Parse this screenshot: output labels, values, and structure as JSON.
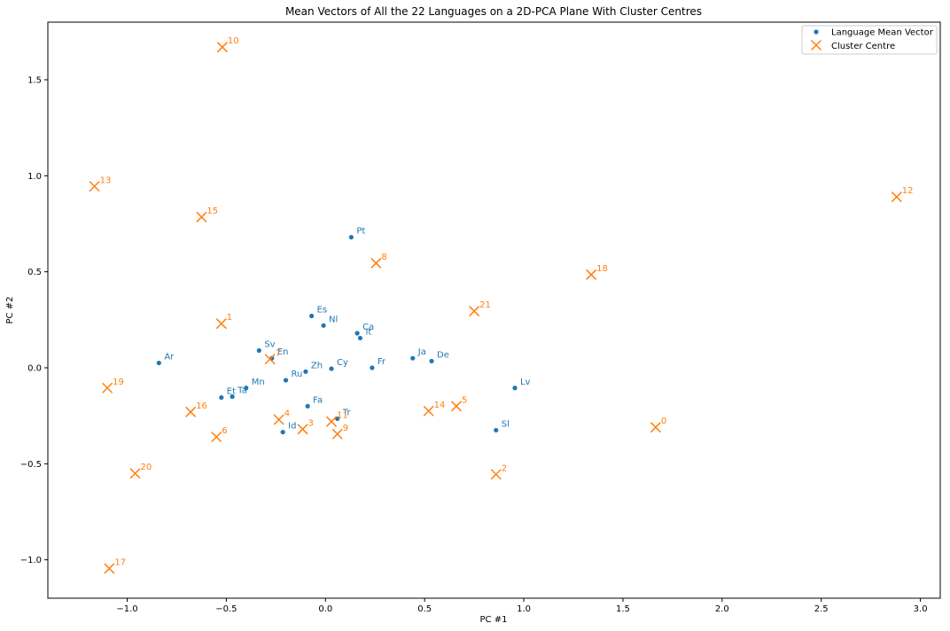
{
  "chart_data": {
    "type": "scatter",
    "title": "Mean Vectors of All the 22 Languages on a 2D-PCA Plane With Cluster Centres",
    "xlabel": "PC #1",
    "ylabel": "PC #2",
    "xlim": [
      -1.4,
      3.1
    ],
    "ylim": [
      -1.2,
      1.8
    ],
    "xticks": [
      -1.0,
      -0.5,
      0.0,
      0.5,
      1.0,
      1.5,
      2.0,
      2.5,
      3.0
    ],
    "xtick_labels": [
      "−1.0",
      "−0.5",
      "0.0",
      "0.5",
      "1.0",
      "1.5",
      "2.0",
      "2.5",
      "3.0"
    ],
    "yticks": [
      -1.0,
      -0.5,
      0.0,
      0.5,
      1.0,
      1.5
    ],
    "ytick_labels": [
      "−1.0",
      "−0.5",
      "0.0",
      "0.5",
      "1.0",
      "1.5"
    ],
    "grid": false,
    "legend": "top-right",
    "series": [
      {
        "name": "Language Mean Vector",
        "marker": "dot",
        "color": "#1f77b4",
        "points": [
          {
            "label": "Pt",
            "x": 0.13,
            "y": 0.68
          },
          {
            "label": "Es",
            "x": -0.07,
            "y": 0.27
          },
          {
            "label": "Nl",
            "x": -0.01,
            "y": 0.22
          },
          {
            "label": "Ca",
            "x": 0.16,
            "y": 0.18
          },
          {
            "label": "It",
            "x": 0.175,
            "y": 0.155
          },
          {
            "label": "Sv",
            "x": -0.335,
            "y": 0.09
          },
          {
            "label": "En",
            "x": -0.27,
            "y": 0.05
          },
          {
            "label": "Ar",
            "x": -0.84,
            "y": 0.025
          },
          {
            "label": "Ja",
            "x": 0.44,
            "y": 0.05
          },
          {
            "label": "De",
            "x": 0.535,
            "y": 0.035
          },
          {
            "label": "Fr",
            "x": 0.235,
            "y": 0.0
          },
          {
            "label": "Zh",
            "x": -0.1,
            "y": -0.02
          },
          {
            "label": "Cy",
            "x": 0.03,
            "y": -0.005
          },
          {
            "label": "Ru",
            "x": -0.2,
            "y": -0.065
          },
          {
            "label": "Mn",
            "x": -0.4,
            "y": -0.105
          },
          {
            "label": "Et",
            "x": -0.525,
            "y": -0.155
          },
          {
            "label": "Ta",
            "x": -0.47,
            "y": -0.15
          },
          {
            "label": "Lv",
            "x": 0.955,
            "y": -0.105
          },
          {
            "label": "Fa",
            "x": -0.09,
            "y": -0.2
          },
          {
            "label": "Tr",
            "x": 0.06,
            "y": -0.265
          },
          {
            "label": "Id",
            "x": -0.215,
            "y": -0.335
          },
          {
            "label": "Sl",
            "x": 0.86,
            "y": -0.325
          }
        ]
      },
      {
        "name": "Cluster Centre",
        "marker": "x",
        "color": "#ff7f0e",
        "points": [
          {
            "label": "0",
            "x": 1.665,
            "y": -0.31
          },
          {
            "label": "1",
            "x": -0.525,
            "y": 0.23
          },
          {
            "label": "2",
            "x": 0.86,
            "y": -0.555
          },
          {
            "label": "3",
            "x": -0.115,
            "y": -0.32
          },
          {
            "label": "4",
            "x": -0.235,
            "y": -0.27
          },
          {
            "label": "5",
            "x": 0.66,
            "y": -0.2
          },
          {
            "label": "6",
            "x": -0.55,
            "y": -0.36
          },
          {
            "label": "7",
            "x": -0.28,
            "y": 0.045
          },
          {
            "label": "8",
            "x": 0.255,
            "y": 0.545
          },
          {
            "label": "9",
            "x": 0.06,
            "y": -0.345
          },
          {
            "label": "10",
            "x": -0.52,
            "y": 1.67
          },
          {
            "label": "11",
            "x": 0.03,
            "y": -0.28
          },
          {
            "label": "12",
            "x": 2.88,
            "y": 0.89
          },
          {
            "label": "13",
            "x": -1.165,
            "y": 0.945
          },
          {
            "label": "14",
            "x": 0.52,
            "y": -0.225
          },
          {
            "label": "15",
            "x": -0.625,
            "y": 0.785
          },
          {
            "label": "16",
            "x": -0.68,
            "y": -0.23
          },
          {
            "label": "17",
            "x": -1.09,
            "y": -1.045
          },
          {
            "label": "18",
            "x": 1.34,
            "y": 0.485
          },
          {
            "label": "19",
            "x": -1.1,
            "y": -0.105
          },
          {
            "label": "20",
            "x": -0.96,
            "y": -0.55
          },
          {
            "label": "21",
            "x": 0.75,
            "y": 0.295
          }
        ]
      }
    ]
  }
}
